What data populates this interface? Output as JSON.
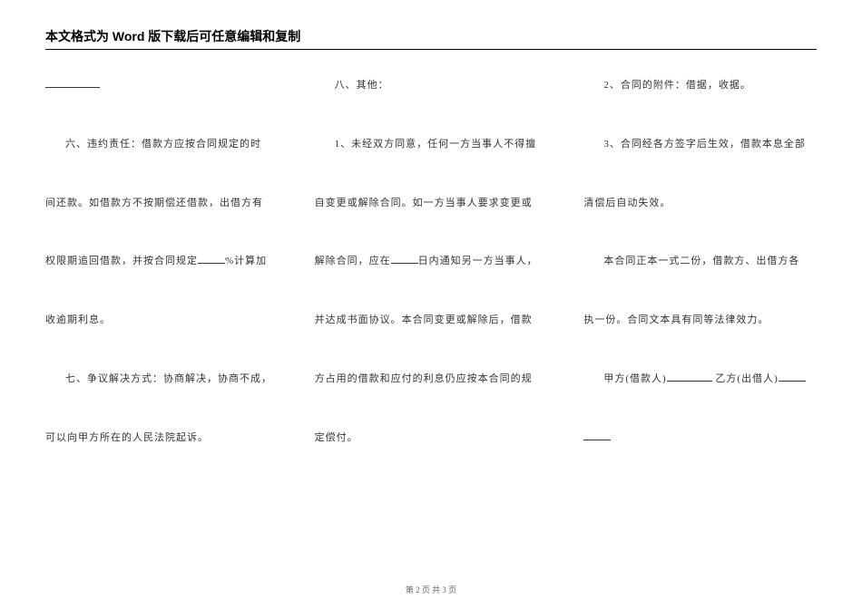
{
  "header": "本文格式为 Word 版下载后可任意编辑和复制",
  "col1": {
    "p1_prefix": "",
    "p2": "六、违约责任：借款方应按合同规定的时",
    "p3": "间还款。如借款方不按期偿还借款，出借方有",
    "p4_a": "权限期追回借款，并按合同规定",
    "p4_b": "%计算加",
    "p5": "收逾期利息。",
    "p6": "七、争议解决方式：协商解决，协商不成，",
    "p7": "可以向甲方所在的人民法院起诉。"
  },
  "col2": {
    "p1": "八、其他：",
    "p2": "1、未经双方同意，任何一方当事人不得擅",
    "p3": "自变更或解除合同。如一方当事人要求变更或",
    "p4_a": "解除合同，应在",
    "p4_b": "日内通知另一方当事人，",
    "p5": "并达成书面协议。本合同变更或解除后，借款",
    "p6": "方占用的借款和应付的利息仍应按本合同的规",
    "p7": "定偿付。"
  },
  "col3": {
    "p1": "2、合同的附件：借据，收据。",
    "p2": "3、合同经各方签字后生效，借款本息全部",
    "p3": "清偿后自动失效。",
    "p4": "本合同正本一式二份，借款方、出借方各",
    "p5": "执一份。合同文本具有同等法律效力。",
    "p6_a": "甲方(借款人)",
    "p6_b": " 乙方(出借人)"
  },
  "footer": "第 2 页 共 3 页"
}
